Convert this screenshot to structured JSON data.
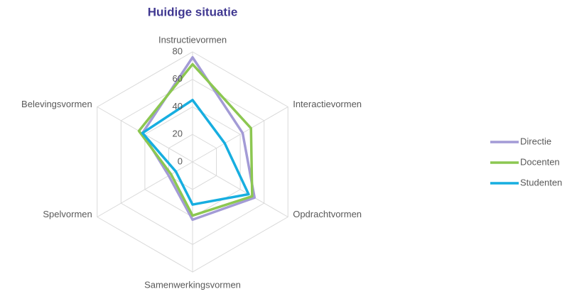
{
  "chart_data": {
    "type": "radar",
    "title": "Huidige situatie",
    "categories": [
      "Instructievormen",
      "Interactievormen",
      "Opdrachtvormen",
      "Samenwerkingsvormen",
      "Spelvormen",
      "Belevingsvormen"
    ],
    "series": [
      {
        "name": "Directie",
        "color": "#a39bd6",
        "values": [
          76,
          42,
          52,
          42,
          20,
          42
        ]
      },
      {
        "name": "Docenten",
        "color": "#8cc751",
        "values": [
          71,
          49,
          50,
          39,
          18,
          45
        ]
      },
      {
        "name": "Studenten",
        "color": "#17aee0",
        "values": [
          45,
          27,
          47,
          31,
          14,
          42
        ]
      }
    ],
    "ylim": [
      0,
      80
    ],
    "yticks": [
      0,
      20,
      40,
      60,
      80
    ],
    "grid": true,
    "legend": "right"
  }
}
